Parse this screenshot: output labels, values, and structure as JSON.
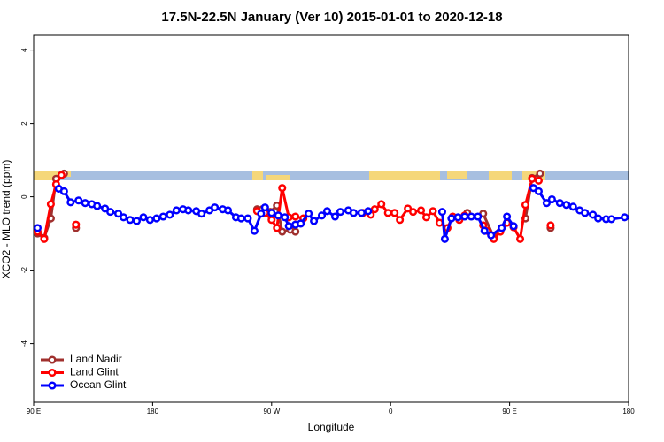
{
  "chart_data": {
    "type": "line",
    "title": "17.5N-22.5N January (Ver 10)   2015-01-01 to 2020-12-18",
    "xlabel": "Longitude",
    "ylabel": "XCO2 - MLO trend (ppm)",
    "xlim": [
      90,
      540
    ],
    "ylim": [
      -5.6,
      4.4
    ],
    "xticks": [
      {
        "value": 90,
        "label": "90 E"
      },
      {
        "value": 180,
        "label": "180"
      },
      {
        "value": 270,
        "label": "90 W"
      },
      {
        "value": 360,
        "label": "0"
      },
      {
        "value": 450,
        "label": "90 E"
      },
      {
        "value": 540,
        "label": "180"
      }
    ],
    "yticks": [
      -4,
      -2,
      0,
      2,
      4
    ],
    "legend": "bottom-left",
    "series": [
      {
        "name": "Land Nadir",
        "color": "#a0302e",
        "x": [
          93,
          98,
          103,
          107,
          113,
          null,
          122,
          null,
          259,
          263,
          269,
          274,
          278,
          284,
          288,
          null,
          418,
          null,
          430,
          438,
          444,
          null,
          462,
          467,
          473,
          null,
          481
        ],
        "values": [
          -1.0,
          -1.12,
          -0.59,
          0.49,
          0.63,
          null,
          -0.85,
          null,
          -0.34,
          -0.34,
          -0.41,
          -0.24,
          -0.95,
          -0.9,
          -0.95,
          null,
          -0.44,
          null,
          -0.46,
          -1.1,
          -0.85,
          null,
          -0.59,
          0.51,
          0.63,
          null,
          -0.85
        ]
      },
      {
        "name": "Land Glint",
        "color": "#ff0000",
        "x": [
          93,
          98,
          103,
          107,
          111,
          null,
          122,
          null,
          259,
          265,
          270,
          274,
          278,
          283,
          288,
          294,
          null,
          339,
          345,
          348,
          353,
          358,
          363,
          367,
          373,
          377,
          383,
          387,
          392,
          397,
          403,
          407,
          412,
          416,
          null,
          430,
          433,
          438,
          443,
          448,
          453,
          458,
          462,
          467,
          472,
          null,
          481
        ],
        "values": [
          -0.95,
          -1.15,
          -0.2,
          0.34,
          0.59,
          null,
          -0.76,
          null,
          -0.39,
          -0.44,
          -0.63,
          -0.85,
          0.24,
          -0.56,
          -0.54,
          -0.59,
          null,
          -0.44,
          -0.49,
          -0.34,
          -0.2,
          -0.44,
          -0.44,
          -0.63,
          -0.32,
          -0.41,
          -0.37,
          -0.56,
          -0.39,
          -0.71,
          -0.85,
          -0.54,
          -0.63,
          -0.51,
          null,
          -0.78,
          -0.93,
          -1.15,
          -0.95,
          -0.71,
          -0.83,
          -1.15,
          -0.22,
          0.49,
          0.44,
          null,
          -0.78
        ]
      },
      {
        "name": "Ocean Glint",
        "color": "#0000ff",
        "x": [
          93,
          null,
          109,
          113,
          118,
          124,
          129,
          134,
          138,
          144,
          148,
          154,
          158,
          163,
          168,
          173,
          178,
          183,
          188,
          193,
          198,
          203,
          207,
          213,
          217,
          223,
          227,
          233,
          237,
          243,
          247,
          252,
          257,
          262,
          265,
          270,
          275,
          280,
          283,
          288,
          292,
          298,
          302,
          308,
          312,
          318,
          322,
          328,
          332,
          338,
          343,
          null,
          399,
          401,
          406,
          411,
          416,
          421,
          426,
          431,
          436,
          444,
          448,
          453,
          null,
          468,
          472,
          478,
          482,
          488,
          493,
          498,
          503,
          507,
          513,
          517,
          523,
          527,
          537
        ],
        "values": [
          -0.85,
          null,
          0.22,
          0.15,
          -0.15,
          -0.1,
          -0.17,
          -0.2,
          -0.25,
          -0.32,
          -0.41,
          -0.46,
          -0.56,
          -0.63,
          -0.66,
          -0.56,
          -0.63,
          -0.59,
          -0.54,
          -0.49,
          -0.37,
          -0.34,
          -0.37,
          -0.39,
          -0.46,
          -0.37,
          -0.29,
          -0.34,
          -0.37,
          -0.56,
          -0.59,
          -0.59,
          -0.93,
          -0.46,
          -0.29,
          -0.44,
          -0.51,
          -0.56,
          -0.8,
          -0.76,
          -0.73,
          -0.46,
          -0.66,
          -0.51,
          -0.39,
          -0.54,
          -0.41,
          -0.37,
          -0.44,
          -0.44,
          -0.39,
          null,
          -0.41,
          -1.15,
          -0.59,
          -0.56,
          -0.54,
          -0.54,
          -0.54,
          -0.93,
          -1.05,
          -0.85,
          -0.54,
          -0.8,
          null,
          0.24,
          0.15,
          -0.17,
          -0.07,
          -0.17,
          -0.22,
          -0.27,
          -0.37,
          -0.44,
          -0.49,
          -0.59,
          -0.61,
          -0.61,
          -0.56
        ]
      }
    ]
  }
}
